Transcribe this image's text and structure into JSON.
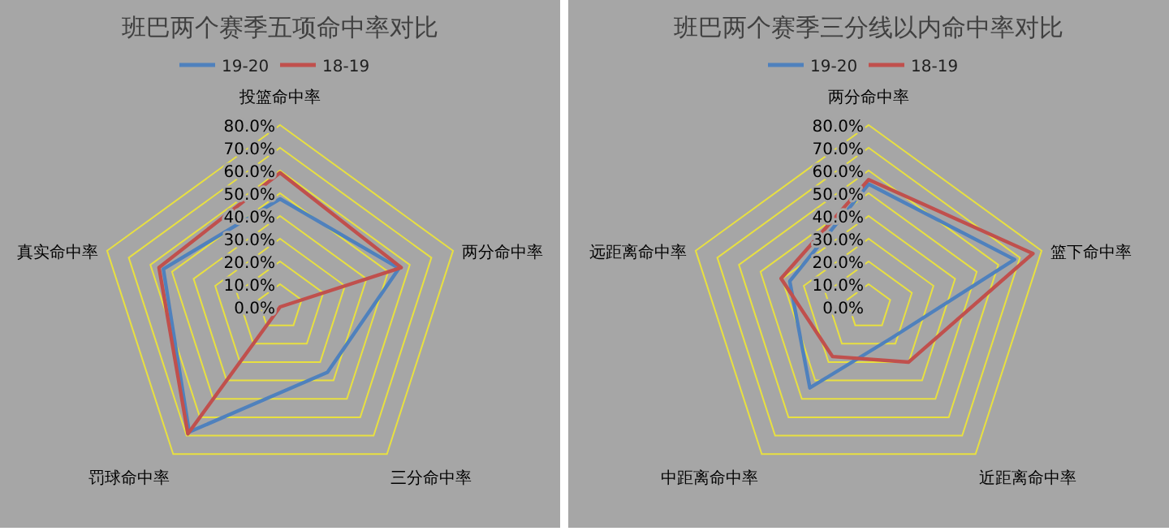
{
  "chart_data": [
    {
      "type": "radar",
      "title": "班巴两个赛季五项命中率对比",
      "categories": [
        "投篮命中率",
        "两分命中率",
        "三分命中率",
        "罚球命中率",
        "真实命中率"
      ],
      "series": [
        {
          "name": "19-20",
          "color": "#4f81bd",
          "values": [
            47.5,
            55,
            35.5,
            68,
            54
          ]
        },
        {
          "name": "18-19",
          "color": "#c0504d",
          "values": [
            59,
            56,
            0,
            69,
            56
          ]
        }
      ],
      "ylim": [
        0,
        80
      ],
      "yticks": [
        {
          "value": 0,
          "label": "0.0%"
        },
        {
          "value": 10,
          "label": "10.0%"
        },
        {
          "value": 20,
          "label": "20.0%"
        },
        {
          "value": 30,
          "label": "30.0%"
        },
        {
          "value": 40,
          "label": "40.0%"
        },
        {
          "value": 50,
          "label": "50.0%"
        },
        {
          "value": 60,
          "label": "60.0%"
        },
        {
          "value": 70,
          "label": "70.0%"
        },
        {
          "value": 80,
          "label": "80.0%"
        }
      ],
      "grid": true,
      "legend": "top",
      "marker": "none"
    },
    {
      "type": "radar",
      "title": "班巴两个赛季三分线以内命中率对比",
      "categories": [
        "两分命中率",
        "篮下命中率",
        "近距离命中率",
        "中距离命中率",
        "远距离命中率"
      ],
      "series": [
        {
          "name": "19-20",
          "color": "#4f81bd",
          "values": [
            54,
            67.5,
            17,
            44,
            36.5
          ]
        },
        {
          "name": "18-19",
          "color": "#c0504d",
          "values": [
            56,
            76,
            30,
            27,
            40.5
          ]
        }
      ],
      "ylim": [
        0,
        80
      ],
      "yticks": [
        {
          "value": 0,
          "label": "0.0%"
        },
        {
          "value": 10,
          "label": "10.0%"
        },
        {
          "value": 20,
          "label": "20.0%"
        },
        {
          "value": 30,
          "label": "30.0%"
        },
        {
          "value": 40,
          "label": "40.0%"
        },
        {
          "value": 50,
          "label": "50.0%"
        },
        {
          "value": 60,
          "label": "60.0%"
        },
        {
          "value": 70,
          "label": "70.0%"
        },
        {
          "value": 80,
          "label": "80.0%"
        }
      ],
      "grid": true,
      "legend": "top",
      "marker": "none"
    }
  ]
}
